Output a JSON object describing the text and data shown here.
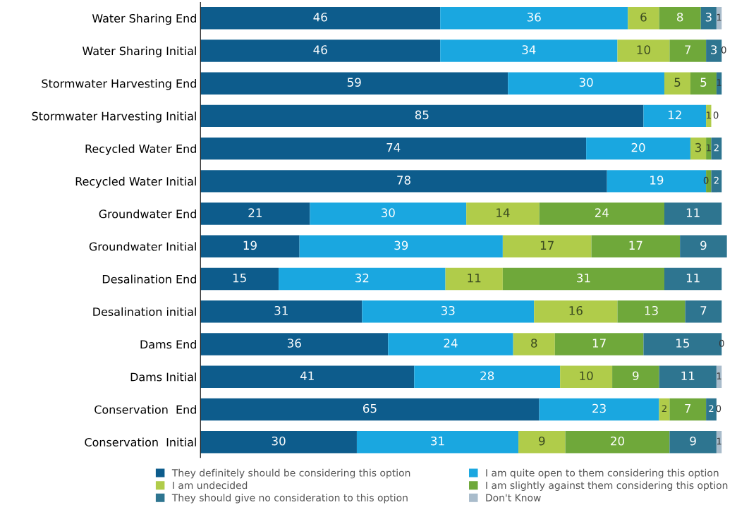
{
  "chart_data": {
    "type": "bar",
    "orientation": "horizontal",
    "stacked": true,
    "tick_labels": "y",
    "legend": "bottom",
    "grid": false,
    "categories": [
      "Water Sharing End",
      "Water Sharing Initial",
      "Stormwater Harvesting End",
      "Stormwater Harvesting Initial",
      "Recycled Water End",
      "Recycled Water Initial",
      "Groundwater End",
      "Groundwater Initial",
      "Desalination End",
      "Desalination initial",
      "Dams End",
      "Dams Initial",
      "Conservation  End",
      "Conservation  Initial"
    ],
    "series": [
      {
        "name": "They definitely should be considering this option",
        "color": "#0d5c8c",
        "values": [
          46,
          46,
          59,
          85,
          74,
          78,
          21,
          19,
          15,
          31,
          36,
          41,
          65,
          30
        ],
        "value_labels": [
          "46",
          "46",
          "59",
          "85",
          "74",
          "78",
          "21",
          "19",
          "15",
          "31",
          "36",
          "41",
          "65",
          "30"
        ]
      },
      {
        "name": "I am quite open to them considering this option",
        "color": "#1aa7e0",
        "values": [
          36,
          34,
          30,
          12,
          20,
          19,
          30,
          39,
          32,
          33,
          24,
          28,
          23,
          31
        ],
        "value_labels": [
          "36",
          "34",
          "30",
          "12",
          "20",
          "19",
          "30",
          "39",
          "32",
          "33",
          "24",
          "28",
          "23",
          "31"
        ]
      },
      {
        "name": "I am undecided",
        "color": "#b0cc4a",
        "values": [
          6,
          10,
          5,
          1,
          3,
          0,
          14,
          17,
          11,
          16,
          8,
          10,
          2,
          9
        ],
        "value_labels": [
          "6",
          "10",
          "5",
          "1",
          "3",
          "0",
          "14",
          "17",
          "11",
          "16",
          "8",
          "10",
          "2",
          "9"
        ]
      },
      {
        "name": "I am slightly against them considering this option",
        "color": "#6fa83a",
        "values": [
          8,
          7,
          5,
          0,
          1,
          1,
          24,
          17,
          31,
          13,
          17,
          9,
          7,
          20
        ],
        "value_labels": [
          "8",
          "7",
          "5",
          "0",
          "1",
          null,
          "24",
          "17",
          "31",
          "13",
          "17",
          "9",
          "7",
          "20"
        ]
      },
      {
        "name": "They should give no consideration to this option",
        "color": "#2e7590",
        "values": [
          3,
          3,
          1,
          null,
          2,
          2,
          11,
          9,
          11,
          7,
          15,
          11,
          2,
          9
        ],
        "value_labels": [
          "3",
          "3",
          "1",
          null,
          "2",
          "2",
          "11",
          "9",
          "11",
          "7",
          "15",
          "11",
          "2",
          "9"
        ]
      },
      {
        "name": "Don't Know",
        "color": "#a9bccb",
        "values": [
          1,
          0,
          null,
          null,
          null,
          null,
          null,
          null,
          null,
          null,
          0,
          1,
          0,
          1
        ],
        "value_labels": [
          "1",
          "0",
          null,
          null,
          null,
          null,
          null,
          null,
          null,
          null,
          "0",
          "1",
          "0",
          "1"
        ]
      }
    ]
  }
}
